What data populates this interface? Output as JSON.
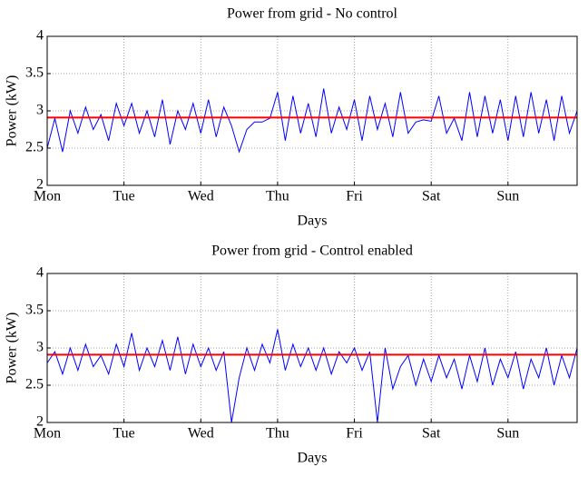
{
  "chart_data": [
    {
      "type": "line",
      "title": "Power from grid - No control",
      "xlabel": "Days",
      "ylabel": "Power (kW)",
      "xlim": [
        0,
        6.9
      ],
      "ylim": [
        2,
        4
      ],
      "xticks": [
        {
          "value": 0,
          "label": "Mon"
        },
        {
          "value": 1,
          "label": "Tue"
        },
        {
          "value": 2,
          "label": "Wed"
        },
        {
          "value": 3,
          "label": "Thu"
        },
        {
          "value": 4,
          "label": "Fri"
        },
        {
          "value": 5,
          "label": "Sat"
        },
        {
          "value": 6,
          "label": "Sun"
        }
      ],
      "yticks": [
        2,
        2.5,
        3,
        3.5,
        4
      ],
      "grid": true,
      "x": [
        0,
        0.1,
        0.2,
        0.3,
        0.4,
        0.5,
        0.6,
        0.7,
        0.8,
        0.9,
        1,
        1.1,
        1.2,
        1.3,
        1.4,
        1.5,
        1.6,
        1.7,
        1.8,
        1.9,
        2,
        2.1,
        2.2,
        2.3,
        2.4,
        2.5,
        2.6,
        2.7,
        2.8,
        2.9,
        3,
        3.1,
        3.2,
        3.3,
        3.4,
        3.5,
        3.6,
        3.7,
        3.8,
        3.9,
        4,
        4.1,
        4.2,
        4.3,
        4.4,
        4.5,
        4.6,
        4.7,
        4.8,
        4.9,
        5,
        5.1,
        5.2,
        5.3,
        5.4,
        5.5,
        5.6,
        5.7,
        5.8,
        5.9,
        6,
        6.1,
        6.2,
        6.3,
        6.4,
        6.5,
        6.6,
        6.7,
        6.8,
        6.9
      ],
      "series": [
        {
          "color": "#0000ff",
          "values": [
            2.5,
            2.9,
            2.45,
            3.0,
            2.7,
            3.05,
            2.75,
            2.95,
            2.6,
            3.1,
            2.8,
            3.1,
            2.7,
            3.0,
            2.65,
            3.15,
            2.55,
            3.0,
            2.75,
            3.1,
            2.7,
            3.15,
            2.65,
            3.05,
            2.8,
            2.45,
            2.75,
            2.85,
            2.85,
            2.9,
            3.25,
            2.6,
            3.2,
            2.7,
            3.1,
            2.65,
            3.3,
            2.7,
            3.05,
            2.75,
            3.15,
            2.6,
            3.2,
            2.75,
            3.1,
            2.65,
            3.25,
            2.7,
            2.85,
            2.88,
            2.86,
            3.2,
            2.7,
            2.9,
            2.6,
            3.25,
            2.65,
            3.2,
            2.7,
            3.15,
            2.6,
            3.2,
            2.65,
            3.25,
            2.7,
            3.15,
            2.6,
            3.2,
            2.7,
            3.0
          ]
        }
      ],
      "hline": {
        "value": 2.91,
        "color": "#ff0000"
      }
    },
    {
      "type": "line",
      "title": "Power from grid - Control enabled",
      "xlabel": "Days",
      "ylabel": "Power (kW)",
      "xlim": [
        0,
        6.9
      ],
      "ylim": [
        2,
        4
      ],
      "xticks": [
        {
          "value": 0,
          "label": "Mon"
        },
        {
          "value": 1,
          "label": "Tue"
        },
        {
          "value": 2,
          "label": "Wed"
        },
        {
          "value": 3,
          "label": "Thu"
        },
        {
          "value": 4,
          "label": "Fri"
        },
        {
          "value": 5,
          "label": "Sat"
        },
        {
          "value": 6,
          "label": "Sun"
        }
      ],
      "yticks": [
        2,
        2.5,
        3,
        3.5,
        4
      ],
      "grid": true,
      "x": [
        0,
        0.1,
        0.2,
        0.3,
        0.4,
        0.5,
        0.6,
        0.7,
        0.8,
        0.9,
        1,
        1.1,
        1.2,
        1.3,
        1.4,
        1.5,
        1.6,
        1.7,
        1.8,
        1.9,
        2,
        2.1,
        2.2,
        2.3,
        2.4,
        2.5,
        2.6,
        2.7,
        2.8,
        2.9,
        3,
        3.1,
        3.2,
        3.3,
        3.4,
        3.5,
        3.6,
        3.7,
        3.8,
        3.9,
        4,
        4.1,
        4.2,
        4.3,
        4.4,
        4.5,
        4.6,
        4.7,
        4.8,
        4.9,
        5,
        5.1,
        5.2,
        5.3,
        5.4,
        5.5,
        5.6,
        5.7,
        5.8,
        5.9,
        6,
        6.1,
        6.2,
        6.3,
        6.4,
        6.5,
        6.6,
        6.7,
        6.8,
        6.9
      ],
      "series": [
        {
          "color": "#0000ff",
          "values": [
            2.8,
            2.95,
            2.65,
            3.0,
            2.7,
            3.05,
            2.75,
            2.9,
            2.65,
            3.05,
            2.75,
            3.2,
            2.7,
            3.0,
            2.75,
            3.1,
            2.7,
            3.15,
            2.65,
            3.05,
            2.75,
            3.0,
            2.7,
            2.95,
            2.0,
            2.6,
            3.0,
            2.7,
            3.05,
            2.8,
            3.25,
            2.7,
            3.05,
            2.75,
            3.0,
            2.7,
            3.0,
            2.65,
            2.95,
            2.8,
            3.0,
            2.7,
            2.95,
            2.0,
            3.0,
            2.45,
            2.75,
            2.9,
            2.5,
            2.85,
            2.55,
            2.9,
            2.6,
            2.85,
            2.45,
            2.9,
            2.55,
            3.0,
            2.5,
            2.85,
            2.6,
            2.95,
            2.45,
            2.85,
            2.6,
            3.0,
            2.5,
            2.9,
            2.6,
            3.0
          ]
        }
      ],
      "hline": {
        "value": 2.91,
        "color": "#ff0000"
      }
    }
  ]
}
